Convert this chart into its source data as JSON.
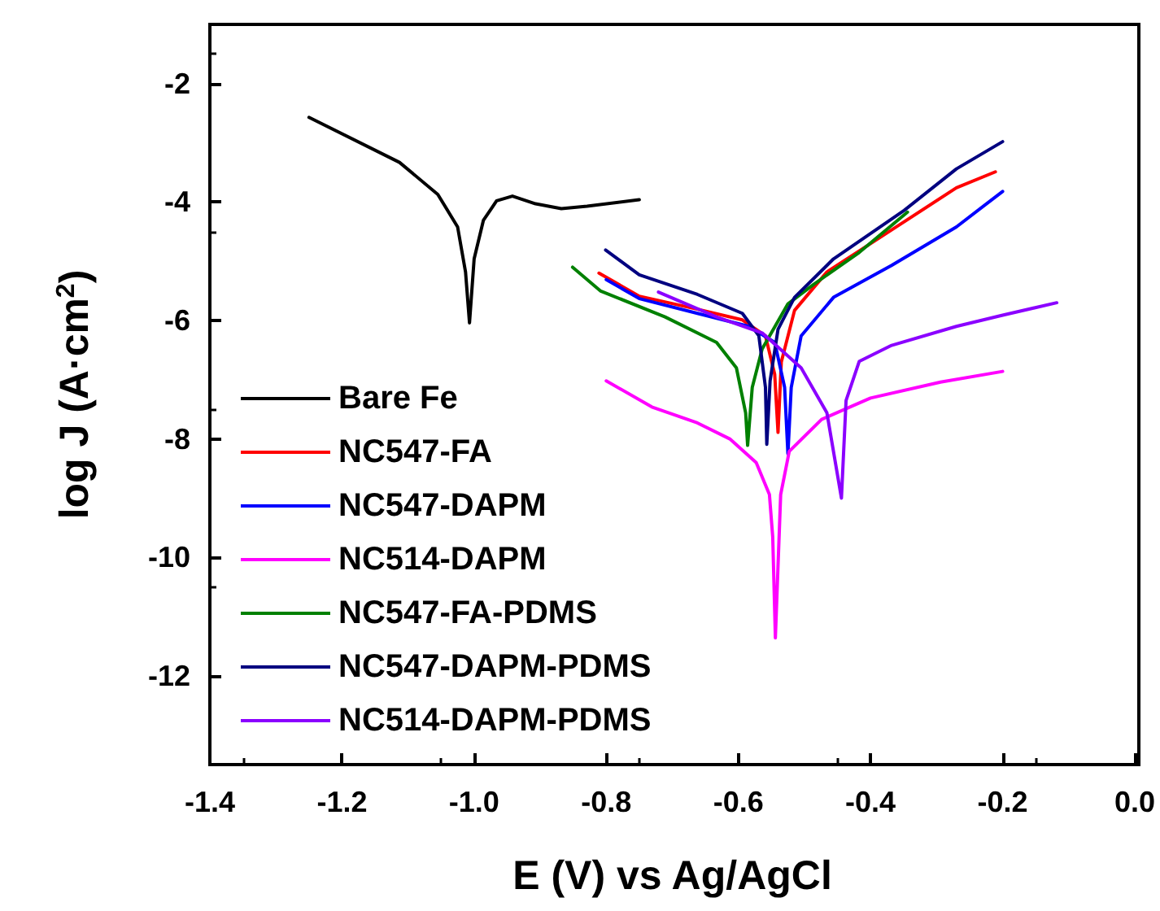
{
  "chart_data": {
    "type": "line",
    "xlabel": "E (V) vs Ag/AgCl",
    "ylabel": "log J (A·cm$^{2}$)",
    "xlim": [
      -1.4,
      0.0
    ],
    "xticks": [
      {
        "value": -1.4,
        "label": "-1.4"
      },
      {
        "value": -1.2,
        "label": "-1.2"
      },
      {
        "value": -1.0,
        "label": "-1.0"
      },
      {
        "value": -0.8,
        "label": "-0.8"
      },
      {
        "value": -0.6,
        "label": "-0.6"
      },
      {
        "value": -0.4,
        "label": "-0.4"
      },
      {
        "value": -0.2,
        "label": "-0.2"
      },
      {
        "value": 0.0,
        "label": "0.0"
      }
    ],
    "ylim": [
      -13.5,
      -1
    ],
    "yticks": [
      -12,
      -10,
      -8,
      -6,
      -4,
      -2
    ],
    "grid": false,
    "legend": "bottom left",
    "marker": "none",
    "line_style": "solid",
    "series": [
      {
        "name": "Bare Fe",
        "color": "#000000",
        "x": [
          -1.25,
          -1.113,
          -1.055,
          -1.025,
          -1.013,
          -1.007,
          -1.0,
          -0.986,
          -0.966,
          -0.942,
          -0.907,
          -0.868,
          -0.829,
          -0.75
        ],
        "values": [
          -2.57,
          -3.33,
          -3.87,
          -4.42,
          -5.18,
          -6.04,
          -4.96,
          -4.31,
          -3.98,
          -3.9,
          -4.03,
          -4.11,
          -4.07,
          -3.96
        ]
      },
      {
        "name": "NC547-FA",
        "color": "#ff0000",
        "x": [
          -0.811,
          -0.75,
          -0.662,
          -0.594,
          -0.559,
          -0.545,
          -0.54,
          -0.535,
          -0.515,
          -0.466,
          -0.368,
          -0.27,
          -0.211
        ],
        "values": [
          -5.2,
          -5.59,
          -5.81,
          -5.99,
          -6.26,
          -6.91,
          -7.89,
          -6.7,
          -5.83,
          -5.18,
          -4.47,
          -3.76,
          -3.49
        ]
      },
      {
        "name": "NC547-DAPM",
        "color": "#0000ff",
        "x": [
          -0.8,
          -0.75,
          -0.662,
          -0.584,
          -0.545,
          -0.53,
          -0.525,
          -0.52,
          -0.505,
          -0.456,
          -0.368,
          -0.27,
          -0.2
        ],
        "values": [
          -5.31,
          -5.63,
          -5.88,
          -6.1,
          -6.37,
          -7.13,
          -8.25,
          -7.13,
          -6.26,
          -5.61,
          -5.07,
          -4.42,
          -3.82
        ]
      },
      {
        "name": "NC514-DAPM",
        "color": "#ff00ff",
        "x": [
          -0.8,
          -0.731,
          -0.662,
          -0.613,
          -0.573,
          -0.553,
          -0.548,
          -0.544,
          -0.536,
          -0.523,
          -0.474,
          -0.4,
          -0.294,
          -0.2
        ],
        "values": [
          -7.02,
          -7.46,
          -7.73,
          -8.0,
          -8.4,
          -8.94,
          -9.66,
          -11.36,
          -8.94,
          -8.21,
          -7.67,
          -7.31,
          -7.04,
          -6.86
        ]
      },
      {
        "name": "NC547-FA-PDMS",
        "color": "#008000",
        "x": [
          -0.851,
          -0.809,
          -0.711,
          -0.633,
          -0.603,
          -0.589,
          -0.586,
          -0.579,
          -0.564,
          -0.525,
          -0.486,
          -0.417,
          -0.344
        ],
        "values": [
          -5.1,
          -5.5,
          -5.94,
          -6.37,
          -6.8,
          -7.56,
          -8.11,
          -7.13,
          -6.48,
          -5.72,
          -5.39,
          -4.85,
          -4.17
        ]
      },
      {
        "name": "NC547-DAPM-PDMS",
        "color": "#000080",
        "x": [
          -0.801,
          -0.75,
          -0.662,
          -0.594,
          -0.569,
          -0.559,
          -0.557,
          -0.552,
          -0.54,
          -0.515,
          -0.456,
          -0.349,
          -0.27,
          -0.2
        ],
        "values": [
          -4.81,
          -5.23,
          -5.56,
          -5.88,
          -6.26,
          -7.13,
          -8.09,
          -7.02,
          -6.15,
          -5.61,
          -4.96,
          -4.14,
          -3.44,
          -2.98
        ]
      },
      {
        "name": "NC514-DAPM-PDMS",
        "color": "#8b00ff",
        "x": [
          -0.721,
          -0.633,
          -0.564,
          -0.505,
          -0.466,
          -0.444,
          -0.437,
          -0.417,
          -0.368,
          -0.27,
          -0.2,
          -0.118
        ],
        "values": [
          -5.52,
          -5.94,
          -6.21,
          -6.8,
          -7.56,
          -9.0,
          -7.35,
          -6.69,
          -6.42,
          -6.1,
          -5.91,
          -5.7
        ]
      }
    ]
  }
}
